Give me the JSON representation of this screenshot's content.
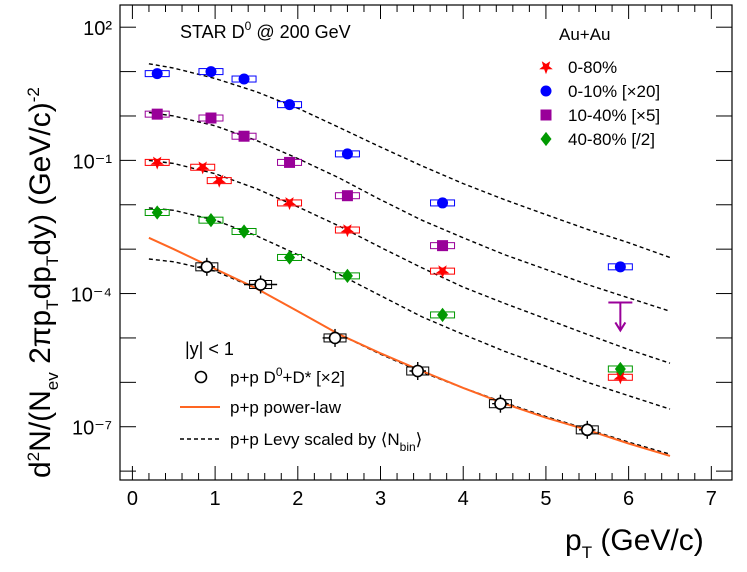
{
  "chart_data": {
    "type": "scatter",
    "title": "",
    "annotations": {
      "experiment": "STAR D⁰ @ 200 GeV",
      "rapidity": "|y| < 1"
    },
    "xlabel": "p_T (GeV/c)",
    "ylabel": "d²N/(N_ev 2πp_T dp_T dy) (GeV/c)⁻²",
    "xlim": [
      -0.15,
      7.25
    ],
    "ylim_log10": [
      -8.2,
      2.5
    ],
    "y_scale": "log",
    "x_ticks": [
      "0",
      "1",
      "2",
      "3",
      "4",
      "5",
      "6",
      "7"
    ],
    "y_ticks": [
      "10²",
      "10⁻¹",
      "10⁻⁴",
      "10⁻⁷"
    ],
    "legend_title": "Au+Au",
    "legend_placement": "top-right",
    "series": [
      {
        "name": "0-80%",
        "marker": "star",
        "color": "#ff0000",
        "points": [
          [
            0.3,
            0.09
          ],
          [
            0.85,
            0.07
          ],
          [
            1.05,
            0.035
          ],
          [
            1.9,
            0.011
          ],
          [
            2.6,
            0.0027
          ],
          [
            3.75,
            0.00032
          ],
          [
            5.9,
            1.3e-06
          ]
        ]
      },
      {
        "name": "0-10% [×20]",
        "marker": "circle",
        "color": "#0000ff",
        "points": [
          [
            0.3,
            9.0
          ],
          [
            0.95,
            10.0
          ],
          [
            1.35,
            6.8
          ],
          [
            1.9,
            1.8
          ],
          [
            2.6,
            0.14
          ],
          [
            3.75,
            0.011
          ],
          [
            5.9,
            0.0004
          ]
        ]
      },
      {
        "name": "10-40% [×5]",
        "marker": "square",
        "color": "#990099",
        "points": [
          [
            0.3,
            1.1
          ],
          [
            0.95,
            0.9
          ],
          [
            1.35,
            0.35
          ],
          [
            1.9,
            0.09
          ],
          [
            2.6,
            0.016
          ],
          [
            3.75,
            0.0012
          ]
        ]
      },
      {
        "name": "40-80% [/2]",
        "marker": "diamond",
        "color": "#009900",
        "points": [
          [
            0.3,
            0.0067
          ],
          [
            0.95,
            0.0045
          ],
          [
            1.35,
            0.0025
          ],
          [
            1.9,
            0.00065
          ],
          [
            2.6,
            0.00025
          ],
          [
            3.75,
            3.3e-05
          ],
          [
            5.9,
            2e-06
          ]
        ]
      }
    ],
    "upper_limit": {
      "series": "10-40% [×5]",
      "x": 5.9,
      "y": 6.3e-05,
      "color": "#990099"
    },
    "pp_data": {
      "name": "p+p D⁰+D* [×2]",
      "marker": "open-circle",
      "color": "#000000",
      "points": [
        [
          0.9,
          0.0004
        ],
        [
          1.55,
          0.00016
        ],
        [
          2.45,
          1e-05
        ],
        [
          3.45,
          1.8e-06
        ],
        [
          4.45,
          3.3e-07
        ],
        [
          5.5,
          8.5e-08
        ]
      ],
      "x_errors": [
        0.1,
        0.2,
        0.15,
        0.1,
        0.1,
        0.1
      ]
    },
    "pp_powerlaw": {
      "name": "p+p power-law",
      "color": "#ff6622",
      "points": [
        [
          0.2,
          0.0018
        ],
        [
          0.5,
          0.001
        ],
        [
          1.0,
          0.00036
        ],
        [
          1.5,
          0.00013
        ],
        [
          2.0,
          4e-05
        ],
        [
          2.5,
          1.2e-05
        ],
        [
          3.0,
          4.5e-06
        ],
        [
          3.5,
          1.8e-06
        ],
        [
          4.0,
          7.5e-07
        ],
        [
          4.5,
          3.3e-07
        ],
        [
          5.0,
          1.6e-07
        ],
        [
          5.5,
          8.5e-08
        ],
        [
          6.0,
          4.2e-08
        ],
        [
          6.5,
          2.2e-08
        ]
      ]
    },
    "pp_levy_label_prefix": "p+p Levy scaled by ",
    "pp_levy_label_nbin": "⟨N",
    "pp_levy_label_sub": "bin",
    "pp_levy_label_close": "⟩",
    "levy_curves": [
      {
        "series": "0-10% [×20]",
        "points": [
          [
            0.2,
            15
          ],
          [
            0.5,
            12
          ],
          [
            1.0,
            7
          ],
          [
            1.5,
            3.5
          ],
          [
            2.0,
            1.5
          ],
          [
            2.5,
            0.55
          ],
          [
            3.0,
            0.2
          ],
          [
            3.5,
            0.075
          ],
          [
            4.0,
            0.03
          ],
          [
            4.5,
            0.013
          ],
          [
            5.0,
            0.006
          ],
          [
            5.5,
            0.0028
          ],
          [
            6.0,
            0.0014
          ],
          [
            6.5,
            0.00065
          ]
        ]
      },
      {
        "series": "10-40% [×5]",
        "points": [
          [
            0.2,
            1.2
          ],
          [
            0.5,
            1.0
          ],
          [
            1.0,
            0.6
          ],
          [
            1.5,
            0.28
          ],
          [
            2.0,
            0.11
          ],
          [
            2.5,
            0.04
          ],
          [
            3.0,
            0.013
          ],
          [
            3.5,
            0.0045
          ],
          [
            4.0,
            0.0018
          ],
          [
            4.5,
            0.00075
          ],
          [
            5.0,
            0.00035
          ],
          [
            5.5,
            0.00016
          ],
          [
            6.0,
            8e-05
          ],
          [
            6.5,
            4e-05
          ]
        ]
      },
      {
        "series": "0-80%",
        "points": [
          [
            0.2,
            0.1
          ],
          [
            0.5,
            0.085
          ],
          [
            1.0,
            0.05
          ],
          [
            1.5,
            0.023
          ],
          [
            2.0,
            0.009
          ],
          [
            2.5,
            0.0033
          ],
          [
            3.0,
            0.0011
          ],
          [
            3.5,
            0.00038
          ],
          [
            4.0,
            0.00014
          ],
          [
            4.5,
            6e-05
          ],
          [
            5.0,
            2.7e-05
          ],
          [
            5.5,
            1.2e-05
          ],
          [
            6.0,
            5.5e-06
          ],
          [
            6.5,
            2.7e-06
          ]
        ]
      },
      {
        "series": "40-80% [/2]",
        "points": [
          [
            0.2,
            0.0085
          ],
          [
            0.5,
            0.0075
          ],
          [
            1.0,
            0.0045
          ],
          [
            1.5,
            0.002
          ],
          [
            2.0,
            0.00075
          ],
          [
            2.5,
            0.00027
          ],
          [
            3.0,
            9e-05
          ],
          [
            3.5,
            3e-05
          ],
          [
            4.0,
            1.2e-05
          ],
          [
            4.5,
            5e-06
          ],
          [
            5.0,
            2.3e-06
          ],
          [
            5.5,
            1e-06
          ],
          [
            6.0,
            5e-07
          ],
          [
            6.5,
            2.5e-07
          ]
        ]
      },
      {
        "series": "p+p",
        "points": [
          [
            0.2,
            0.0006
          ],
          [
            0.5,
            0.00052
          ],
          [
            1.0,
            0.00032
          ],
          [
            1.5,
            0.00013
          ],
          [
            2.0,
            4e-05
          ],
          [
            2.5,
            1.2e-05
          ],
          [
            3.0,
            4.3e-06
          ],
          [
            3.5,
            1.7e-06
          ],
          [
            4.0,
            7.5e-07
          ],
          [
            4.5,
            3.5e-07
          ],
          [
            5.0,
            1.7e-07
          ],
          [
            5.5,
            8.8e-08
          ],
          [
            6.0,
            4.5e-08
          ],
          [
            6.5,
            2.4e-08
          ]
        ]
      }
    ]
  }
}
